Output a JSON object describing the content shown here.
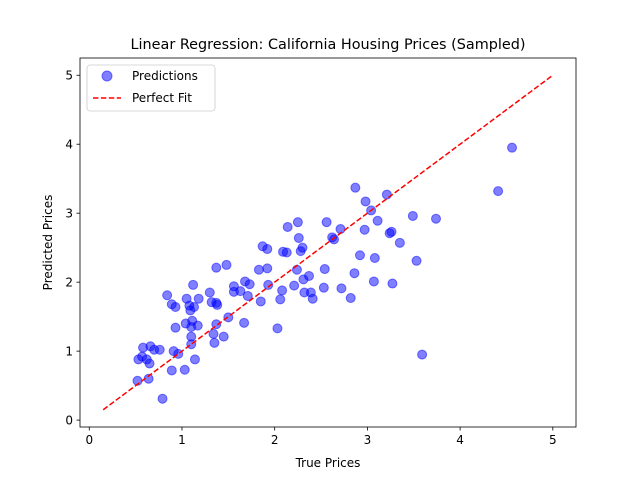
{
  "chart_data": {
    "type": "scatter",
    "title": "Linear Regression: California Housing Prices (Sampled)",
    "xlabel": "True Prices",
    "ylabel": "Predicted Prices",
    "xlim": [
      -0.1,
      5.25
    ],
    "ylim": [
      -0.1,
      5.25
    ],
    "xticks": [
      0,
      1,
      2,
      3,
      4,
      5
    ],
    "yticks": [
      0,
      1,
      2,
      3,
      4,
      5
    ],
    "grid": false,
    "legend_position": "top-left",
    "series": [
      {
        "name": "Predictions",
        "kind": "scatter",
        "color": "#0000ff",
        "points": [
          [
            0.52,
            0.57
          ],
          [
            0.53,
            0.88
          ],
          [
            0.57,
            0.92
          ],
          [
            0.58,
            1.05
          ],
          [
            0.62,
            0.88
          ],
          [
            0.64,
            0.6
          ],
          [
            0.65,
            0.82
          ],
          [
            0.66,
            1.07
          ],
          [
            0.7,
            1.02
          ],
          [
            0.76,
            1.02
          ],
          [
            0.79,
            0.31
          ],
          [
            0.84,
            1.81
          ],
          [
            0.89,
            1.68
          ],
          [
            0.89,
            0.72
          ],
          [
            0.91,
            1.0
          ],
          [
            0.93,
            1.64
          ],
          [
            0.93,
            1.34
          ],
          [
            0.96,
            0.96
          ],
          [
            1.03,
            0.73
          ],
          [
            1.04,
            1.4
          ],
          [
            1.05,
            1.76
          ],
          [
            1.08,
            1.66
          ],
          [
            1.09,
            1.59
          ],
          [
            1.1,
            1.1
          ],
          [
            1.1,
            1.21
          ],
          [
            1.1,
            1.35
          ],
          [
            1.11,
            1.44
          ],
          [
            1.12,
            1.96
          ],
          [
            1.13,
            1.64
          ],
          [
            1.14,
            0.88
          ],
          [
            1.17,
            1.37
          ],
          [
            1.18,
            1.76
          ],
          [
            1.3,
            1.85
          ],
          [
            1.32,
            1.71
          ],
          [
            1.34,
            1.25
          ],
          [
            1.35,
            1.12
          ],
          [
            1.37,
            1.7
          ],
          [
            1.37,
            1.39
          ],
          [
            1.37,
            2.21
          ],
          [
            1.38,
            1.67
          ],
          [
            1.45,
            1.21
          ],
          [
            1.48,
            2.25
          ],
          [
            1.5,
            1.49
          ],
          [
            1.56,
            1.86
          ],
          [
            1.56,
            1.94
          ],
          [
            1.63,
            1.87
          ],
          [
            1.67,
            1.41
          ],
          [
            1.68,
            2.01
          ],
          [
            1.71,
            1.8
          ],
          [
            1.73,
            1.97
          ],
          [
            1.83,
            2.18
          ],
          [
            1.85,
            1.72
          ],
          [
            1.87,
            2.52
          ],
          [
            1.92,
            2.48
          ],
          [
            1.92,
            2.2
          ],
          [
            1.93,
            1.96
          ],
          [
            2.03,
            1.33
          ],
          [
            2.06,
            1.75
          ],
          [
            2.08,
            1.88
          ],
          [
            2.09,
            2.44
          ],
          [
            2.13,
            2.43
          ],
          [
            2.14,
            2.8
          ],
          [
            2.21,
            1.95
          ],
          [
            2.24,
            2.18
          ],
          [
            2.25,
            2.87
          ],
          [
            2.26,
            2.64
          ],
          [
            2.28,
            2.45
          ],
          [
            2.3,
            2.5
          ],
          [
            2.31,
            2.04
          ],
          [
            2.32,
            1.85
          ],
          [
            2.37,
            2.09
          ],
          [
            2.39,
            1.85
          ],
          [
            2.41,
            1.76
          ],
          [
            2.53,
            1.92
          ],
          [
            2.54,
            2.19
          ],
          [
            2.56,
            2.87
          ],
          [
            2.62,
            2.65
          ],
          [
            2.64,
            2.62
          ],
          [
            2.71,
            2.77
          ],
          [
            2.72,
            1.91
          ],
          [
            2.82,
            1.77
          ],
          [
            2.86,
            2.13
          ],
          [
            2.87,
            3.37
          ],
          [
            2.92,
            2.39
          ],
          [
            2.97,
            2.76
          ],
          [
            2.98,
            3.17
          ],
          [
            3.04,
            3.04
          ],
          [
            3.07,
            2.01
          ],
          [
            3.08,
            2.35
          ],
          [
            3.11,
            2.89
          ],
          [
            3.21,
            3.27
          ],
          [
            3.24,
            2.71
          ],
          [
            3.26,
            2.73
          ],
          [
            3.27,
            1.98
          ],
          [
            3.35,
            2.57
          ],
          [
            3.49,
            2.96
          ],
          [
            3.53,
            2.31
          ],
          [
            3.59,
            0.95
          ],
          [
            3.74,
            2.92
          ],
          [
            4.41,
            3.32
          ],
          [
            4.56,
            3.95
          ]
        ]
      },
      {
        "name": "Perfect Fit",
        "kind": "line",
        "style": "dashed",
        "color": "#ff0000",
        "points": [
          [
            0.15,
            0.15
          ],
          [
            5.0,
            5.0
          ]
        ]
      }
    ]
  }
}
